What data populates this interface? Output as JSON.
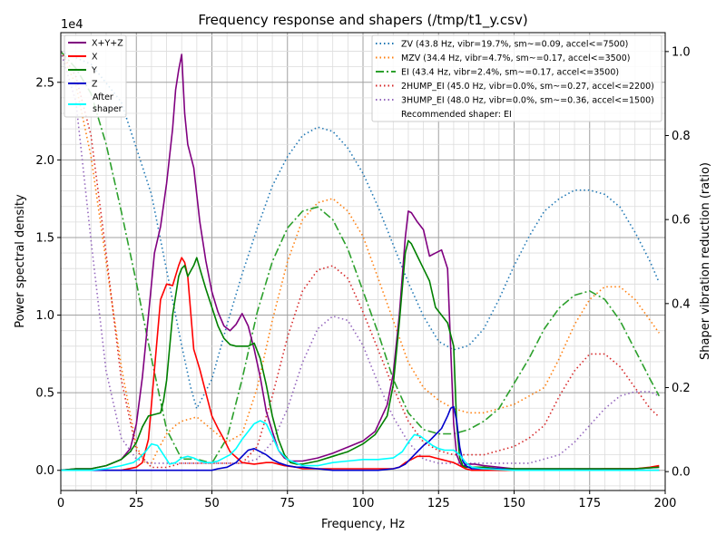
{
  "chart_data": {
    "type": "line",
    "title": "Frequency response and shapers (/tmp/t1_y.csv)",
    "xlabel": "Frequency, Hz",
    "ylabel": "Power spectral density",
    "ylabel_right": "Shaper vibration reduction (ratio)",
    "y_offset_text": "1e4",
    "xlim": [
      0,
      200
    ],
    "ylim": [
      -0.13,
      2.82
    ],
    "ylim_right": [
      -0.045,
      1.045
    ],
    "x_ticks": [
      0,
      25,
      50,
      75,
      100,
      125,
      150,
      175,
      200
    ],
    "x_tick_labels": [
      "0",
      "25",
      "50",
      "75",
      "100",
      "125",
      "150",
      "175",
      "200"
    ],
    "y_ticks": [
      0.0,
      0.5,
      1.0,
      1.5,
      2.0,
      2.5
    ],
    "y_tick_labels": [
      "0.0",
      "0.5",
      "1.0",
      "1.5",
      "2.0",
      "2.5"
    ],
    "y_right_ticks": [
      0.0,
      0.2,
      0.4,
      0.6,
      0.8,
      1.0
    ],
    "y_right_tick_labels": [
      "0.0",
      "0.2",
      "0.4",
      "0.6",
      "0.8",
      "1.0"
    ],
    "grid": "major and minor",
    "legend_left_position": "upper-left",
    "legend_right_position": "upper-right",
    "psd_series": [
      {
        "name": "X+Y+Z",
        "color": "#800080",
        "style": "solid",
        "x": [
          0,
          5,
          10,
          15,
          20,
          23,
          25,
          27,
          29,
          31,
          33,
          35,
          37,
          38,
          39,
          40,
          41,
          42,
          44,
          46,
          48,
          50,
          52,
          54,
          56,
          58,
          60,
          62,
          64,
          66,
          68,
          70,
          72,
          74,
          76,
          78,
          80,
          85,
          90,
          95,
          100,
          104,
          108,
          110,
          112,
          114,
          115,
          116,
          118,
          120,
          122,
          124,
          126,
          128,
          130,
          131,
          132,
          133,
          134,
          135,
          137,
          140,
          145,
          150,
          160,
          170,
          180,
          190,
          198
        ],
        "y": [
          0,
          0.01,
          0.01,
          0.03,
          0.07,
          0.14,
          0.3,
          0.6,
          1.0,
          1.4,
          1.57,
          1.85,
          2.2,
          2.45,
          2.58,
          2.68,
          2.3,
          2.1,
          1.95,
          1.6,
          1.35,
          1.15,
          1.02,
          0.93,
          0.9,
          0.94,
          1.01,
          0.93,
          0.78,
          0.6,
          0.38,
          0.25,
          0.13,
          0.08,
          0.06,
          0.06,
          0.06,
          0.08,
          0.11,
          0.15,
          0.19,
          0.25,
          0.42,
          0.62,
          1.0,
          1.5,
          1.67,
          1.66,
          1.6,
          1.55,
          1.38,
          1.4,
          1.42,
          1.3,
          0.3,
          0.1,
          0.05,
          0.02,
          0.04,
          0.04,
          0.04,
          0.03,
          0.02,
          0.01,
          0.01,
          0.01,
          0.01,
          0.01,
          0.02
        ]
      },
      {
        "name": "X",
        "color": "#ff0000",
        "style": "solid",
        "x": [
          0,
          10,
          20,
          25,
          27,
          29,
          31,
          33,
          35,
          37,
          39,
          40,
          41,
          42,
          44,
          46,
          48,
          50,
          52,
          54,
          56,
          60,
          64,
          68,
          70,
          74,
          78,
          80,
          90,
          100,
          110,
          112,
          114,
          116,
          118,
          120,
          122,
          124,
          126,
          128,
          130,
          132,
          134,
          136,
          140,
          150,
          160,
          170,
          180,
          190,
          195,
          198
        ],
        "y": [
          0,
          0,
          0,
          0.02,
          0.05,
          0.2,
          0.65,
          1.1,
          1.2,
          1.19,
          1.32,
          1.37,
          1.34,
          1.25,
          0.78,
          0.65,
          0.5,
          0.35,
          0.27,
          0.2,
          0.12,
          0.05,
          0.04,
          0.05,
          0.05,
          0.03,
          0.02,
          0.01,
          0.01,
          0.01,
          0.01,
          0.02,
          0.05,
          0.07,
          0.09,
          0.09,
          0.09,
          0.08,
          0.07,
          0.06,
          0.05,
          0.03,
          0.01,
          0,
          0,
          0,
          0,
          0,
          0.01,
          0.01,
          0.02,
          0.03
        ]
      },
      {
        "name": "Y",
        "color": "#008000",
        "style": "solid",
        "x": [
          0,
          5,
          10,
          15,
          20,
          23,
          25,
          27,
          29,
          31,
          33,
          34,
          35,
          37,
          39,
          40,
          41,
          42,
          44,
          45,
          46,
          48,
          50,
          52,
          54,
          56,
          58,
          60,
          62,
          64,
          66,
          68,
          70,
          72,
          74,
          76,
          78,
          80,
          85,
          90,
          95,
          100,
          104,
          108,
          110,
          112,
          114,
          115,
          116,
          118,
          120,
          122,
          124,
          126,
          128,
          130,
          131,
          132,
          133,
          134,
          135,
          137,
          140,
          145,
          150,
          160,
          170,
          180,
          190,
          198
        ],
        "y": [
          0,
          0.01,
          0.01,
          0.03,
          0.07,
          0.12,
          0.18,
          0.28,
          0.35,
          0.36,
          0.37,
          0.45,
          0.58,
          1.0,
          1.25,
          1.3,
          1.32,
          1.25,
          1.32,
          1.37,
          1.3,
          1.17,
          1.05,
          0.93,
          0.85,
          0.81,
          0.8,
          0.8,
          0.8,
          0.82,
          0.72,
          0.55,
          0.35,
          0.2,
          0.1,
          0.05,
          0.04,
          0.04,
          0.06,
          0.09,
          0.12,
          0.17,
          0.23,
          0.35,
          0.55,
          0.95,
          1.4,
          1.48,
          1.46,
          1.38,
          1.3,
          1.22,
          1.05,
          1.0,
          0.95,
          0.8,
          0.3,
          0.08,
          0.03,
          0.02,
          0.02,
          0.02,
          0.02,
          0.01,
          0.01,
          0.01,
          0.01,
          0.01,
          0.01,
          0.02
        ]
      },
      {
        "name": "Z",
        "color": "#0000cc",
        "style": "solid",
        "x": [
          0,
          20,
          30,
          40,
          45,
          50,
          52,
          55,
          58,
          60,
          62,
          64,
          66,
          68,
          70,
          72,
          75,
          78,
          80,
          85,
          90,
          100,
          105,
          110,
          112,
          114,
          116,
          118,
          120,
          122,
          124,
          126,
          128,
          129,
          130,
          131,
          132,
          133,
          134,
          135,
          136,
          140,
          145,
          150,
          160,
          170,
          180,
          190,
          198
        ],
        "y": [
          0,
          0,
          0,
          0,
          0,
          0,
          0.01,
          0.02,
          0.05,
          0.09,
          0.13,
          0.14,
          0.12,
          0.1,
          0.07,
          0.05,
          0.03,
          0.02,
          0.02,
          0.01,
          0,
          0,
          0,
          0.01,
          0.02,
          0.04,
          0.08,
          0.12,
          0.16,
          0.19,
          0.23,
          0.27,
          0.35,
          0.4,
          0.41,
          0.32,
          0.15,
          0.06,
          0.03,
          0.02,
          0.01,
          0.01,
          0.01,
          0,
          0,
          0,
          0,
          0,
          0
        ]
      },
      {
        "name": "After\nshaper",
        "color": "#00ffff",
        "style": "solid",
        "x": [
          0,
          10,
          15,
          20,
          24,
          26,
          28,
          30,
          32,
          34,
          36,
          38,
          40,
          42,
          44,
          46,
          48,
          50,
          52,
          54,
          56,
          58,
          60,
          62,
          64,
          66,
          68,
          70,
          72,
          75,
          80,
          85,
          90,
          95,
          100,
          105,
          110,
          113,
          115,
          117,
          119,
          121,
          123,
          125,
          127,
          130,
          132,
          134,
          136,
          140,
          150,
          160,
          170,
          180,
          190,
          198
        ],
        "y": [
          0,
          0,
          0.01,
          0.03,
          0.05,
          0.08,
          0.12,
          0.17,
          0.16,
          0.1,
          0.04,
          0.05,
          0.08,
          0.09,
          0.08,
          0.06,
          0.05,
          0.05,
          0.06,
          0.08,
          0.1,
          0.14,
          0.2,
          0.25,
          0.3,
          0.32,
          0.3,
          0.22,
          0.13,
          0.07,
          0.03,
          0.03,
          0.05,
          0.06,
          0.07,
          0.07,
          0.08,
          0.12,
          0.18,
          0.23,
          0.22,
          0.19,
          0.16,
          0.14,
          0.13,
          0.13,
          0.1,
          0.05,
          0.02,
          0.01,
          0,
          0,
          0,
          0,
          0,
          0
        ]
      }
    ],
    "shaper_series": [
      {
        "name": "ZV (43.8 Hz, vibr=19.7%, sm~=0.09, accel<=7500)",
        "color": "#1f77b4",
        "style": "dotted",
        "x": [
          0,
          10,
          20,
          30,
          40,
          43,
          45,
          50,
          55,
          60,
          65,
          70,
          75,
          80,
          85,
          90,
          95,
          100,
          105,
          110,
          115,
          120,
          125,
          130,
          135,
          140,
          145,
          150,
          155,
          160,
          165,
          170,
          175,
          180,
          185,
          190,
          195,
          198
        ],
        "y": [
          1.0,
          0.97,
          0.88,
          0.66,
          0.3,
          0.2,
          0.15,
          0.22,
          0.35,
          0.47,
          0.58,
          0.68,
          0.75,
          0.8,
          0.82,
          0.81,
          0.77,
          0.71,
          0.63,
          0.54,
          0.45,
          0.37,
          0.31,
          0.29,
          0.3,
          0.34,
          0.41,
          0.49,
          0.56,
          0.62,
          0.65,
          0.67,
          0.67,
          0.66,
          0.63,
          0.57,
          0.5,
          0.45
        ]
      },
      {
        "name": "MZV (34.4 Hz, vibr=4.7%, sm~=0.17, accel<=3500)",
        "color": "#ff7f0e",
        "style": "dotted",
        "x": [
          0,
          5,
          10,
          15,
          20,
          25,
          28,
          30,
          32,
          35,
          38,
          40,
          45,
          50,
          55,
          60,
          65,
          70,
          75,
          80,
          85,
          90,
          95,
          100,
          105,
          110,
          115,
          120,
          125,
          130,
          135,
          140,
          145,
          150,
          155,
          160,
          165,
          170,
          175,
          180,
          185,
          190,
          195,
          198
        ],
        "y": [
          1.0,
          0.92,
          0.75,
          0.5,
          0.25,
          0.06,
          0.02,
          0.02,
          0.05,
          0.09,
          0.11,
          0.12,
          0.13,
          0.1,
          0.07,
          0.09,
          0.2,
          0.36,
          0.5,
          0.6,
          0.64,
          0.65,
          0.62,
          0.56,
          0.46,
          0.36,
          0.26,
          0.2,
          0.17,
          0.15,
          0.14,
          0.14,
          0.15,
          0.16,
          0.18,
          0.2,
          0.27,
          0.35,
          0.41,
          0.44,
          0.44,
          0.41,
          0.36,
          0.33
        ]
      },
      {
        "name": "EI (43.4 Hz, vibr=2.4%, sm~=0.17, accel<=3500)",
        "color": "#2ca02c",
        "style": "dashdot",
        "x": [
          0,
          5,
          10,
          15,
          20,
          25,
          30,
          35,
          40,
          45,
          50,
          55,
          60,
          65,
          70,
          75,
          80,
          85,
          90,
          95,
          100,
          105,
          110,
          115,
          120,
          125,
          130,
          135,
          140,
          145,
          150,
          155,
          160,
          165,
          170,
          175,
          180,
          185,
          190,
          195,
          198
        ],
        "y": [
          1.0,
          0.96,
          0.9,
          0.78,
          0.62,
          0.45,
          0.27,
          0.1,
          0.03,
          0.03,
          0.02,
          0.08,
          0.22,
          0.38,
          0.5,
          0.58,
          0.62,
          0.63,
          0.6,
          0.53,
          0.43,
          0.33,
          0.22,
          0.14,
          0.1,
          0.09,
          0.09,
          0.1,
          0.12,
          0.15,
          0.21,
          0.27,
          0.34,
          0.39,
          0.42,
          0.43,
          0.41,
          0.36,
          0.29,
          0.22,
          0.18
        ]
      },
      {
        "name": "2HUMP_EI (45.0 Hz, vibr=0.0%, sm~=0.27, accel<=2200)",
        "color": "#d62728",
        "style": "dotted",
        "x": [
          0,
          5,
          10,
          15,
          20,
          25,
          30,
          35,
          40,
          45,
          50,
          55,
          60,
          65,
          70,
          75,
          80,
          85,
          90,
          95,
          100,
          105,
          110,
          115,
          120,
          125,
          130,
          135,
          140,
          145,
          150,
          155,
          160,
          165,
          170,
          175,
          180,
          185,
          190,
          195,
          198
        ],
        "y": [
          1.0,
          0.94,
          0.8,
          0.52,
          0.22,
          0.05,
          0.01,
          0.01,
          0.02,
          0.02,
          0.02,
          0.02,
          0.02,
          0.06,
          0.18,
          0.32,
          0.43,
          0.48,
          0.49,
          0.46,
          0.38,
          0.29,
          0.2,
          0.12,
          0.07,
          0.05,
          0.04,
          0.04,
          0.04,
          0.05,
          0.06,
          0.08,
          0.11,
          0.18,
          0.24,
          0.28,
          0.28,
          0.25,
          0.2,
          0.15,
          0.13
        ]
      },
      {
        "name": "3HUMP_EI (48.0 Hz, vibr=0.0%, sm~=0.36, accel<=1500)",
        "color": "#9467bd",
        "style": "dotted",
        "x": [
          0,
          5,
          10,
          15,
          20,
          25,
          30,
          35,
          40,
          45,
          50,
          55,
          60,
          65,
          70,
          75,
          80,
          85,
          90,
          95,
          100,
          105,
          110,
          115,
          120,
          125,
          130,
          135,
          140,
          145,
          150,
          155,
          160,
          165,
          170,
          175,
          180,
          185,
          190,
          195,
          198
        ],
        "y": [
          1.0,
          0.88,
          0.55,
          0.24,
          0.08,
          0.03,
          0.02,
          0.02,
          0.02,
          0.02,
          0.02,
          0.02,
          0.02,
          0.03,
          0.07,
          0.15,
          0.26,
          0.34,
          0.37,
          0.36,
          0.3,
          0.21,
          0.13,
          0.07,
          0.03,
          0.02,
          0.02,
          0.02,
          0.02,
          0.02,
          0.02,
          0.02,
          0.03,
          0.04,
          0.07,
          0.11,
          0.15,
          0.18,
          0.19,
          0.19,
          0.18
        ]
      }
    ],
    "legend_left": [
      {
        "label": "X+Y+Z",
        "color": "#800080",
        "style": "solid"
      },
      {
        "label": "X",
        "color": "#ff0000",
        "style": "solid"
      },
      {
        "label": "Y",
        "color": "#008000",
        "style": "solid"
      },
      {
        "label": "Z",
        "color": "#0000cc",
        "style": "solid"
      },
      {
        "label": "After",
        "label2": "shaper",
        "color": "#00ffff",
        "style": "solid"
      }
    ],
    "legend_right": [
      {
        "label": "ZV (43.8 Hz, vibr=19.7%, sm~=0.09, accel<=7500)",
        "color": "#1f77b4",
        "style": "dotted"
      },
      {
        "label": "MZV (34.4 Hz, vibr=4.7%, sm~=0.17, accel<=3500)",
        "color": "#ff7f0e",
        "style": "dotted"
      },
      {
        "label": "EI (43.4 Hz, vibr=2.4%, sm~=0.17, accel<=3500)",
        "color": "#2ca02c",
        "style": "dashdot"
      },
      {
        "label": "2HUMP_EI (45.0 Hz, vibr=0.0%, sm~=0.27, accel<=2200)",
        "color": "#d62728",
        "style": "dotted"
      },
      {
        "label": "3HUMP_EI (48.0 Hz, vibr=0.0%, sm~=0.36, accel<=1500)",
        "color": "#9467bd",
        "style": "dotted"
      },
      {
        "label": "Recommended shaper: EI",
        "color": "none",
        "style": "none"
      }
    ]
  }
}
